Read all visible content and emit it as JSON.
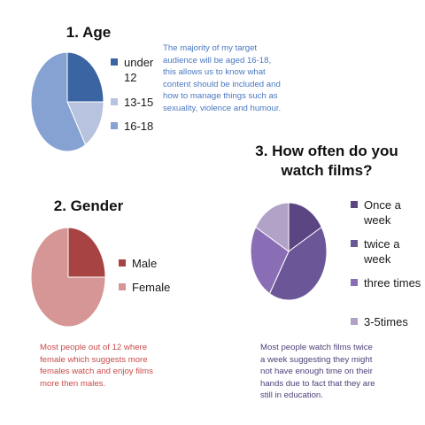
{
  "chart_data": [
    {
      "type": "pie",
      "title": "1. Age",
      "categories": [
        "under 12",
        "13-15",
        "16-18"
      ],
      "values": [
        3,
        2,
        7
      ],
      "colors": [
        "#3a64a2",
        "#b7c3df",
        "#85a2d2"
      ],
      "legend": "right"
    },
    {
      "type": "pie",
      "title": "2. Gender",
      "categories": [
        "Male",
        "Female"
      ],
      "values": [
        3,
        9
      ],
      "colors": [
        "#a84343",
        "#d69696"
      ],
      "legend": "right"
    },
    {
      "type": "pie",
      "title": "3. How often do you watch films?",
      "categories": [
        "Once a week",
        "twice a week",
        "three times",
        "3-5times"
      ],
      "values": [
        2,
        5,
        3,
        2
      ],
      "colors": [
        "#5b4683",
        "#6b5698",
        "#8a6eb5",
        "#b1a3c8"
      ],
      "legend": "right"
    }
  ],
  "notes": {
    "age": "The majority of my target audience will be aged 16-18, this allows us to know what content should be included and how to manage things such as sexuality, violence and humour.",
    "gender": "Most people out of 12 where female which suggests more females watch and enjoy films more then males.",
    "films": "Most people watch films twice a week suggesting they might not have enough time on their hands due to fact that they are still in education."
  },
  "note_colors": {
    "age": "#4a78c0",
    "gender": "#c94a4a",
    "films": "#50407a"
  }
}
